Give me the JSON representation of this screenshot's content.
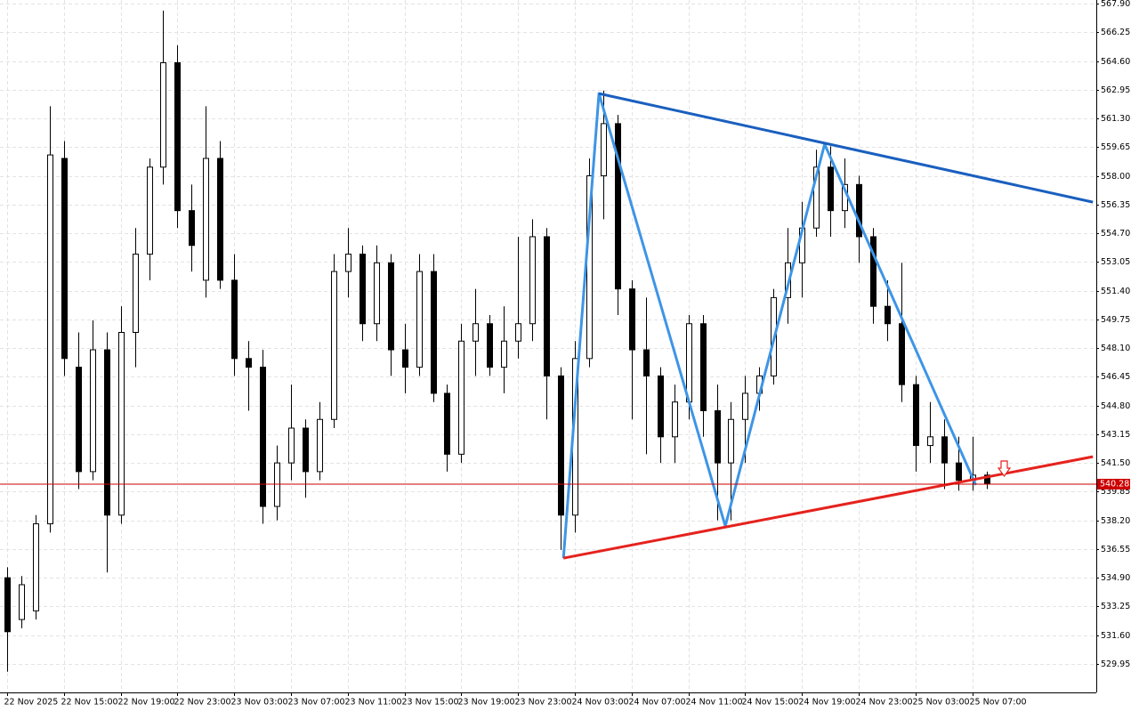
{
  "chart_data": {
    "type": "candlestick",
    "categories": [
      "22 Nov 2025",
      null,
      null,
      null,
      "22 Nov 15:00",
      null,
      null,
      null,
      "22 Nov 19:00",
      null,
      null,
      null,
      "22 Nov 23:00",
      null,
      null,
      null,
      "23 Nov 03:00",
      null,
      null,
      null,
      "23 Nov 07:00",
      null,
      null,
      null,
      "23 Nov 11:00",
      null,
      null,
      null,
      "23 Nov 15:00",
      null,
      null,
      null,
      "23 Nov 19:00",
      null,
      null,
      null,
      "23 Nov 23:00",
      null,
      null,
      null,
      "24 Nov 03:00",
      null,
      null,
      null,
      "24 Nov 07:00",
      null,
      null,
      null,
      "24 Nov 11:00",
      null,
      null,
      null,
      "24 Nov 15:00",
      null,
      null,
      null,
      "24 Nov 19:00",
      null,
      null,
      null,
      "24 Nov 23:00",
      null,
      null,
      null,
      "25 Nov 03:00",
      null,
      null,
      null,
      "25 Nov 07:00",
      null
    ],
    "open": [
      534.9,
      532.5,
      533,
      538,
      559,
      547,
      541,
      548,
      538.5,
      549,
      553.5,
      558.5,
      564.5,
      556,
      552,
      559,
      552,
      547.5,
      547,
      539,
      541.5,
      543.5,
      541,
      544,
      552.5,
      553.5,
      549.5,
      553,
      548,
      547,
      552.5,
      545.5,
      542,
      548.5,
      549.5,
      547,
      548.5,
      549.5,
      554.5,
      546.5,
      538.5,
      547.5,
      558,
      561,
      551.5,
      548,
      546.5,
      543,
      545,
      549.5,
      544.5,
      541.5,
      544,
      545.5,
      546.5,
      551,
      553,
      555,
      558.5,
      556,
      557.5,
      554.5,
      550.5,
      549.5,
      546,
      542.5,
      543,
      541.5,
      540.5,
      540.8
    ],
    "high": [
      535.5,
      535,
      538.5,
      562,
      560,
      549,
      549.7,
      549,
      550.5,
      555,
      559,
      567.5,
      565.5,
      557.5,
      562,
      560,
      553.5,
      548.5,
      548,
      542.5,
      546,
      544,
      545,
      553.5,
      555,
      554,
      554,
      553.5,
      549.5,
      553.5,
      553.5,
      546,
      549.5,
      551.5,
      550,
      550.5,
      554.5,
      555.5,
      555,
      547,
      548.5,
      559,
      562.9,
      561.5,
      552,
      551,
      547,
      546,
      550,
      550,
      546,
      545,
      546.5,
      547,
      551.5,
      555,
      556.5,
      559.5,
      559.7,
      559,
      558,
      555,
      552,
      553,
      546.5,
      545,
      544,
      543,
      543,
      541
    ],
    "low": [
      529.5,
      532,
      532.5,
      537.5,
      546.5,
      540,
      540.5,
      535.2,
      538,
      547,
      552,
      557.5,
      555,
      552.5,
      551,
      551.5,
      546.5,
      544.5,
      538,
      538.2,
      540.5,
      539.5,
      540.5,
      543.5,
      551,
      548.5,
      548.5,
      546.5,
      545.5,
      546.5,
      545,
      541,
      541.5,
      546.5,
      546.5,
      545.5,
      547.5,
      548.5,
      544,
      536.5,
      537.5,
      547,
      555.5,
      550,
      544,
      542,
      541.5,
      541.5,
      544,
      543,
      538.2,
      538.2,
      541.5,
      544.5,
      546,
      549.5,
      551,
      554.5,
      554.5,
      555,
      553,
      549.5,
      548.5,
      545,
      541,
      541.5,
      540,
      539.9,
      539.9,
      540
    ],
    "close": [
      531.8,
      534.5,
      538,
      559.2,
      547.5,
      541,
      548,
      538.5,
      549,
      553.5,
      558.5,
      564.5,
      556,
      554,
      559,
      552,
      547.5,
      547,
      539,
      541.5,
      543.5,
      541,
      544,
      552.5,
      553.5,
      549.5,
      553,
      548,
      547,
      552.5,
      545.5,
      542,
      548.5,
      549.5,
      547,
      548.5,
      549.5,
      554.5,
      546.5,
      538.5,
      547.5,
      558,
      561,
      551.5,
      548,
      546.5,
      543,
      545,
      549.5,
      544.5,
      541.5,
      544,
      545.5,
      546.5,
      551,
      553,
      555,
      558.5,
      556,
      557.5,
      554.5,
      550.5,
      549.5,
      546,
      542.5,
      543,
      541.5,
      540.5,
      540.8,
      540.28
    ],
    "up_color": "#ffffff",
    "down_color": "#000000",
    "ylim": [
      528.31,
      567.9
    ],
    "yticks": [
      529.95,
      {
        "value": 531.6,
        "label": "531.60"
      },
      533.25,
      {
        "value": 534.9,
        "label": "534.90"
      },
      536.55,
      {
        "value": 538.2,
        "label": "538.20"
      },
      539.85,
      {
        "value": 541.5,
        "label": "541.50"
      },
      543.15,
      {
        "value": 544.8,
        "label": "544.80"
      },
      546.45,
      {
        "value": 548.1,
        "label": "548.10"
      },
      549.75,
      {
        "value": 551.4,
        "label": "551.40"
      },
      553.05,
      {
        "value": 554.7,
        "label": "554.70"
      },
      556.35,
      {
        "value": 558,
        "label": "558.00"
      },
      559.65,
      {
        "value": 561.3,
        "label": "561.30"
      },
      562.95,
      {
        "value": 564.6,
        "label": "564.60"
      },
      566.25,
      {
        "value": 567.9,
        "label": "567.90"
      }
    ],
    "grid": true,
    "current_price": 540.28,
    "current_price_color": "#cc0000",
    "lines": [
      {
        "color": "#3d95e6",
        "x": [
          39.2,
          41.7,
          50.6,
          57.6,
          68.25
        ],
        "values": [
          536.03,
          562.73,
          537.87,
          559.82,
          540.23
        ]
      },
      {
        "color": "#1a5fbf",
        "x": [
          41.7,
          76.5
        ],
        "values": [
          562.73,
          556.49
        ]
      },
      {
        "color": "#e5221d",
        "x": [
          39.2,
          76.5
        ],
        "values": [
          536.03,
          541.86
        ]
      }
    ]
  }
}
